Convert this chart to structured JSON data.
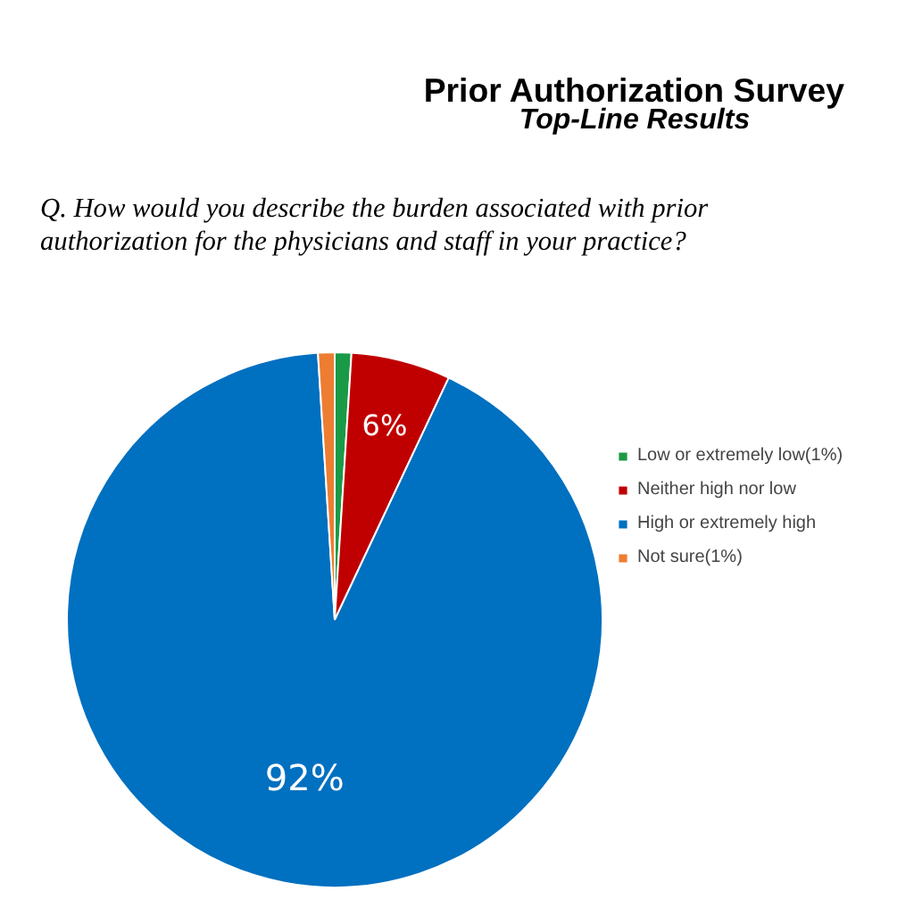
{
  "chart_data": {
    "type": "pie",
    "title": "Prior Authorization Survey",
    "subtitle": "Top-Line Results",
    "annotations": [
      "Q. How would you describe the burden associated with prior\nauthorization for the physicians and staff in your practice?"
    ],
    "categories": [
      "Low or extremely low(1%)",
      "Neither high nor low",
      "High or extremely high",
      "Not sure(1%)"
    ],
    "values": [
      1,
      6,
      92,
      1
    ],
    "colors": [
      "#1a9a46",
      "#c00000",
      "#0070c0",
      "#ed7d31"
    ],
    "value_labels": [
      null,
      "6%",
      "92%",
      null
    ],
    "legend": "right"
  }
}
